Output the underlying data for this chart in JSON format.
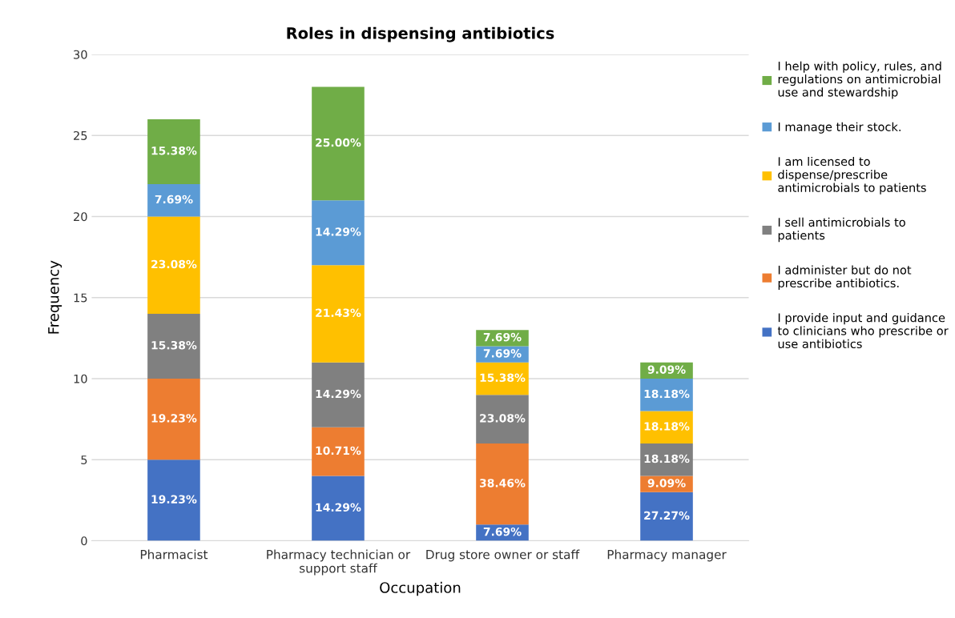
{
  "chart_data": {
    "type": "bar",
    "stacked": true,
    "title": "Roles in dispensing antibiotics",
    "xlabel": "Occupation",
    "ylabel": "Frequency",
    "categories": [
      "Pharmacist",
      "Pharmacy technician or support staff",
      "Drug store owner or staff",
      "Pharmacy manager"
    ],
    "ylim": [
      0,
      30
    ],
    "yticks": [
      0,
      5,
      10,
      15,
      20,
      25,
      30
    ],
    "grid": "y",
    "legend": "right",
    "series": [
      {
        "name": "I provide input and guidance to clinicians who prescribe or use antibiotics",
        "color": "#4472c4",
        "values": [
          5,
          4,
          1,
          3
        ]
      },
      {
        "name": "I administer but do not prescribe antibiotics.",
        "color": "#ed7d31",
        "values": [
          5,
          3,
          5,
          1
        ]
      },
      {
        "name": "I sell antimicrobials to patients",
        "color": "#808080",
        "values": [
          4,
          4,
          3,
          2
        ]
      },
      {
        "name": "I am licensed to dispense/prescribe antimicrobials to patients",
        "color": "#ffc000",
        "values": [
          6,
          6,
          2,
          2
        ]
      },
      {
        "name": "I manage their stock.",
        "color": "#5b9bd5",
        "values": [
          2,
          4,
          1,
          2
        ]
      },
      {
        "name": "I help with policy, rules, and regulations on antimicrobial use and stewardship",
        "color": "#70ad47",
        "values": [
          4,
          7,
          1,
          1
        ]
      }
    ],
    "annotations": [
      "19.23%",
      "19.23%",
      "15.38%",
      "23.08%",
      "7.69%",
      "15.38%",
      "14.29%",
      "10.71%",
      "14.29%",
      "21.43%",
      "14.29%",
      "25.00%",
      "7.69%",
      "38.46%",
      "23.08%",
      "15.38%",
      "7.69%",
      "7.69%",
      "27.27%",
      "9.09%",
      "18.18%",
      "18.18%",
      "18.18%",
      "9.09%"
    ]
  }
}
